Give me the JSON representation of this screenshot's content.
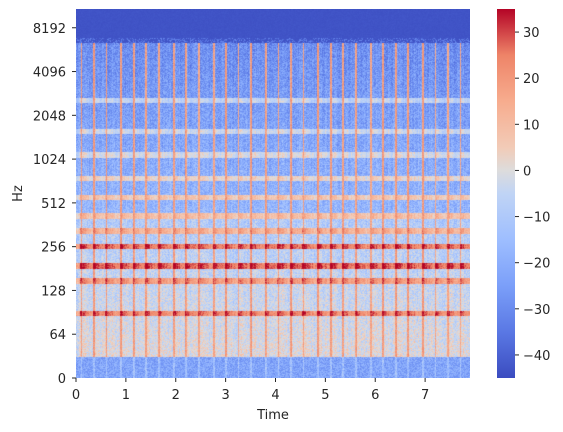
{
  "chart_data": {
    "type": "heatmap",
    "title": "",
    "xlabel": "Time",
    "ylabel": "Hz",
    "x_range": [
      0,
      7.9
    ],
    "x_ticks": [
      0,
      1,
      2,
      3,
      4,
      5,
      6,
      7
    ],
    "y_scale": "log2 (symlog from 0)",
    "y_ticks": [
      0,
      64,
      128,
      256,
      512,
      1024,
      2048,
      4096,
      8192
    ],
    "y_range": [
      0,
      11025
    ],
    "colormap": "coolwarm",
    "colorbar": {
      "range": [
        -45,
        35
      ],
      "ticks": [
        30,
        20,
        10,
        0,
        -10,
        -20,
        -30,
        -40
      ],
      "tick_labels": [
        "30",
        "20",
        "10",
        "0",
        "−10",
        "−20",
        "−30",
        "−40"
      ]
    },
    "onsets_seconds": [
      0.1,
      0.35,
      0.6,
      0.9,
      1.15,
      1.4,
      1.65,
      1.95,
      2.2,
      2.45,
      2.75,
      3.0,
      3.25,
      3.5,
      3.8,
      4.05,
      4.3,
      4.55,
      4.85,
      5.1,
      5.35,
      5.6,
      5.9,
      6.15,
      6.4,
      6.65,
      6.95,
      7.2,
      7.45,
      7.7
    ],
    "harmonic_bands_hz": [
      {
        "freq": 90,
        "db": 22
      },
      {
        "freq": 150,
        "db": 18
      },
      {
        "freq": 190,
        "db": 26
      },
      {
        "freq": 260,
        "db": 24
      },
      {
        "freq": 330,
        "db": 12
      },
      {
        "freq": 420,
        "db": 14
      },
      {
        "freq": 560,
        "db": 12
      },
      {
        "freq": 760,
        "db": 8
      },
      {
        "freq": 1100,
        "db": 4
      },
      {
        "freq": 1600,
        "db": 2
      },
      {
        "freq": 2600,
        "db": 0
      }
    ],
    "grid": false
  }
}
